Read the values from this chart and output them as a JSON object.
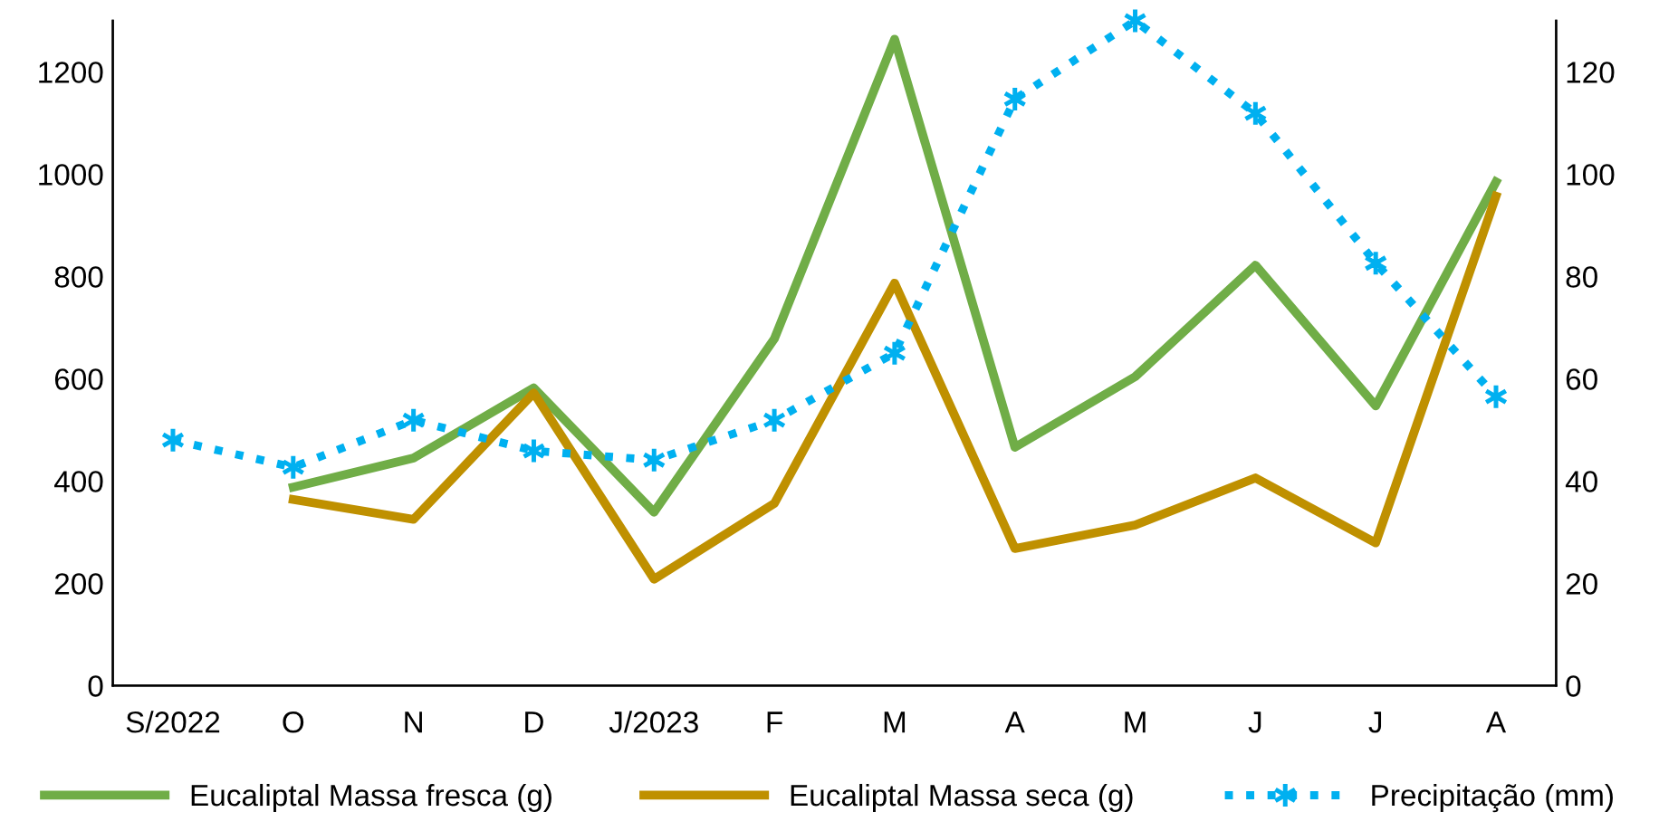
{
  "chart_data": {
    "type": "line",
    "categories": [
      "S/2022",
      "O",
      "N",
      "D",
      "J/2023",
      "F",
      "M",
      "A",
      "M",
      "J",
      "J",
      "A"
    ],
    "series": [
      {
        "name": "Eucaliptal Massa fresca (g)",
        "color": "#70ad47",
        "line_style": "solid",
        "marker": "none",
        "values": [
          null,
          388,
          445,
          582,
          339,
          678,
          1264,
          466,
          604,
          822,
          547,
          985
        ]
      },
      {
        "name": "Eucaliptal Massa seca (g)",
        "color": "#bf9000",
        "line_style": "solid",
        "marker": "none",
        "values": [
          null,
          364,
          325,
          572,
          208,
          356,
          787,
          268,
          314,
          406,
          279,
          957
        ]
      },
      {
        "name": "Precipitação (mm)",
        "color": "#00b0f0",
        "axis": "y2",
        "line_style": "dotted",
        "marker": "cross",
        "values": [
          48,
          42.7,
          51.9,
          45.9,
          44.1,
          51.9,
          65,
          114.7,
          130,
          111.9,
          82.6,
          56.5
        ]
      }
    ],
    "ylim": [
      0,
      1300
    ],
    "yticks": [
      0,
      200,
      400,
      600,
      800,
      1000,
      1200
    ],
    "y2lim": [
      0,
      130
    ],
    "y2ticks": [
      0,
      20,
      40,
      60,
      80,
      100,
      120
    ],
    "grid": false,
    "legend": "bottom"
  }
}
